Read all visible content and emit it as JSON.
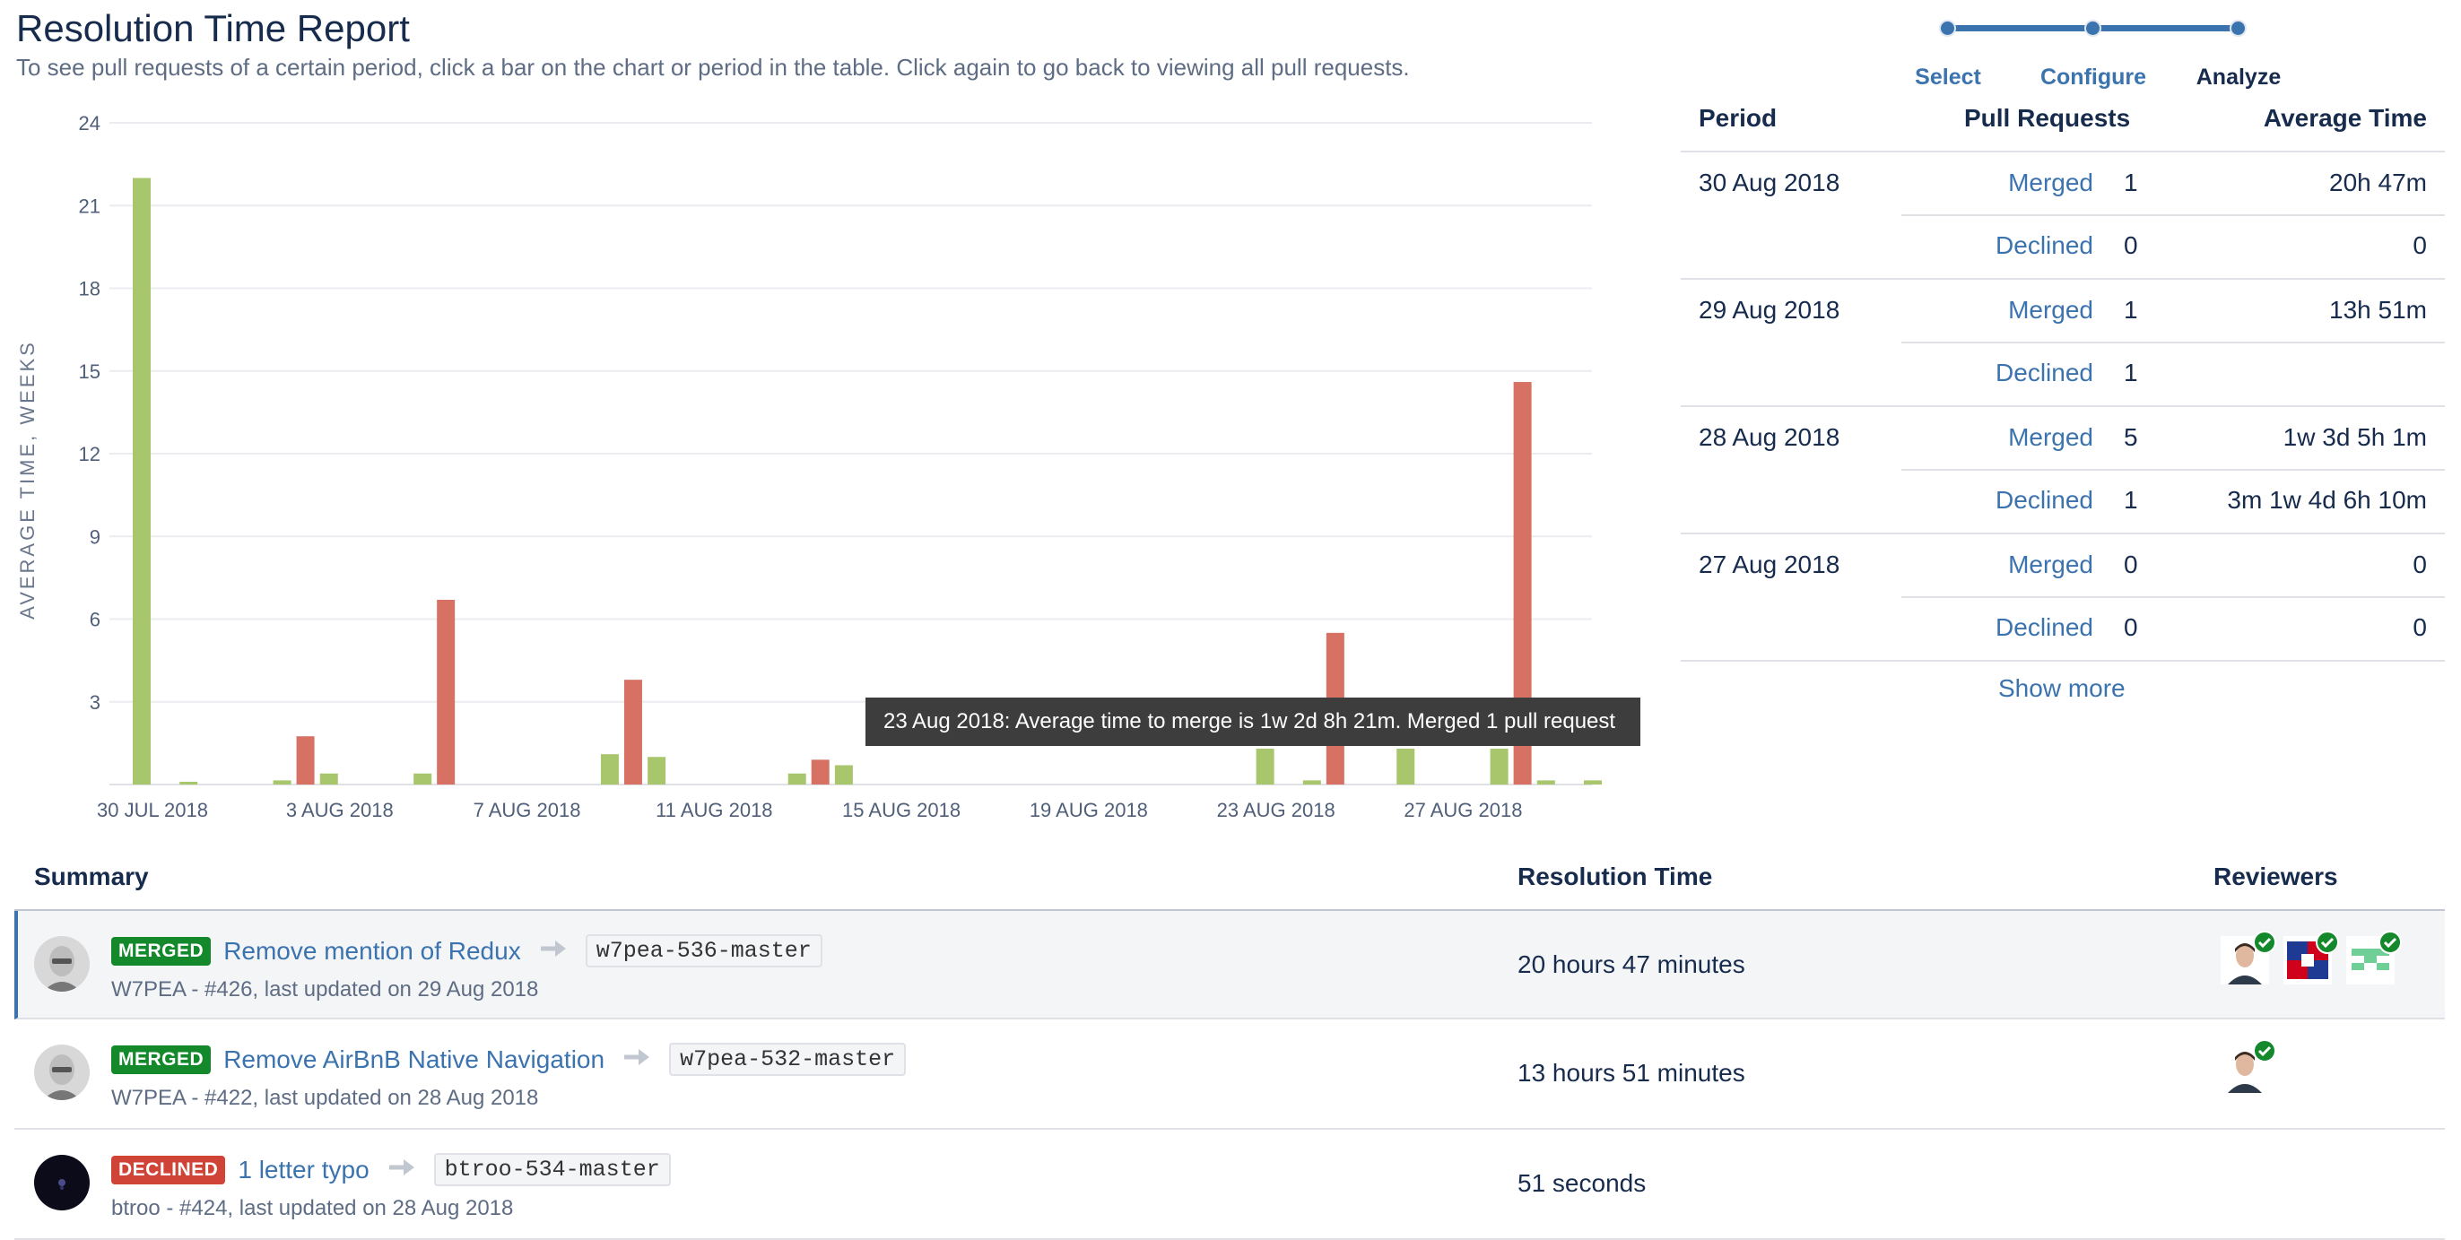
{
  "header": {
    "title": "Resolution Time Report",
    "subtitle": "To see pull requests of a certain period, click a bar on the chart or period in the table. Click again to go back to viewing all pull requests."
  },
  "stepper": {
    "steps": [
      {
        "label": "Select",
        "state": "link"
      },
      {
        "label": "Configure",
        "state": "link"
      },
      {
        "label": "Analyze",
        "state": "current"
      }
    ],
    "color": "#3b73af"
  },
  "chart_data": {
    "type": "bar",
    "ylabel": "AVERAGE TIME, WEEKS",
    "ylim": [
      0,
      24
    ],
    "yticks": [
      3,
      6,
      9,
      12,
      15,
      18,
      21,
      24
    ],
    "grid": true,
    "xtick_labels": [
      "30 JUL 2018",
      "3 AUG 2018",
      "7 AUG 2018",
      "11 AUG 2018",
      "15 AUG 2018",
      "19 AUG 2018",
      "23 AUG 2018",
      "27 AUG 2018"
    ],
    "x_range": [
      "2018-07-30",
      "2018-08-30"
    ],
    "series": [
      {
        "color": "#a8c66c",
        "points": [
          {
            "date": "2018-07-30",
            "value": 22.0
          },
          {
            "date": "2018-07-31",
            "value": 0.1
          },
          {
            "date": "2018-08-02",
            "value": 0.15
          },
          {
            "date": "2018-08-03",
            "value": 0.4
          },
          {
            "date": "2018-08-05",
            "value": 0.4
          },
          {
            "date": "2018-08-09",
            "value": 1.1
          },
          {
            "date": "2018-08-10",
            "value": 1.0
          },
          {
            "date": "2018-08-13",
            "value": 0.4
          },
          {
            "date": "2018-08-14",
            "value": 0.7
          },
          {
            "date": "2018-08-23",
            "value": 1.3
          },
          {
            "date": "2018-08-24",
            "value": 0.15
          },
          {
            "date": "2018-08-26",
            "value": 1.3
          },
          {
            "date": "2018-08-28",
            "value": 1.3
          },
          {
            "date": "2018-08-29",
            "value": 0.15
          },
          {
            "date": "2018-08-30",
            "value": 0.15
          }
        ]
      },
      {
        "color": "#d77164",
        "points": [
          {
            "date": "2018-08-02",
            "value": 1.75
          },
          {
            "date": "2018-08-05",
            "value": 6.7
          },
          {
            "date": "2018-08-09",
            "value": 3.8
          },
          {
            "date": "2018-08-13",
            "value": 0.9
          },
          {
            "date": "2018-08-24",
            "value": 5.5
          },
          {
            "date": "2018-08-28",
            "value": 14.6
          }
        ]
      }
    ],
    "tooltip": "23 Aug 2018: Average time to merge is 1w 2d 8h 21m. Merged 1 pull request"
  },
  "period_table": {
    "headers": {
      "period": "Period",
      "pull_requests": "Pull Requests",
      "average_time": "Average Time"
    },
    "groups": [
      {
        "period": "30 Aug 2018",
        "rows": [
          {
            "type": "Merged",
            "count": "1",
            "time": "20h 47m"
          },
          {
            "type": "Declined",
            "count": "0",
            "time": "0"
          }
        ]
      },
      {
        "period": "29 Aug 2018",
        "rows": [
          {
            "type": "Merged",
            "count": "1",
            "time": "13h 51m"
          },
          {
            "type": "Declined",
            "count": "1",
            "time": ""
          }
        ]
      },
      {
        "period": "28 Aug 2018",
        "rows": [
          {
            "type": "Merged",
            "count": "5",
            "time": "1w 3d 5h 1m"
          },
          {
            "type": "Declined",
            "count": "1",
            "time": "3m 1w 4d 6h 10m"
          }
        ]
      },
      {
        "period": "27 Aug 2018",
        "rows": [
          {
            "type": "Merged",
            "count": "0",
            "time": "0"
          },
          {
            "type": "Declined",
            "count": "0",
            "time": "0"
          }
        ]
      }
    ],
    "show_more": "Show more"
  },
  "summary": {
    "headers": {
      "summary": "Summary",
      "resolution_time": "Resolution Time",
      "reviewers": "Reviewers"
    },
    "rows": [
      {
        "status": "MERGED",
        "title": "Remove mention of Redux",
        "branch": "w7pea-536-master",
        "meta": "W7PEA - #426, last updated on 29 Aug 2018",
        "resolution_time": "20 hours 47 minutes",
        "avatar": "bald-man-avatar",
        "reviewers": [
          "man-avatar",
          "flag-avatar",
          "green-pattern-avatar"
        ],
        "selected": true
      },
      {
        "status": "MERGED",
        "title": "Remove AirBnB Native Navigation",
        "branch": "w7pea-532-master",
        "meta": "W7PEA - #422, last updated on 28 Aug 2018",
        "resolution_time": "13 hours 51 minutes",
        "avatar": "bald-man-avatar",
        "reviewers": [
          "man-avatar"
        ],
        "selected": false
      },
      {
        "status": "DECLINED",
        "title": "1 letter typo",
        "branch": "btroo-534-master",
        "meta": "btroo - #424, last updated on 28 Aug 2018",
        "resolution_time": "51 seconds",
        "avatar": "dark-space-avatar",
        "reviewers": [],
        "selected": false
      }
    ]
  }
}
